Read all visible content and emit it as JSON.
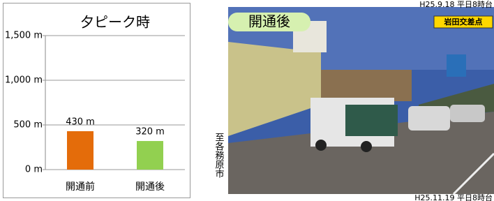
{
  "chart_data": {
    "type": "bar",
    "title": "夕ピーク時",
    "categories": [
      "開通前",
      "開通後"
    ],
    "values": [
      430,
      320
    ],
    "value_labels": [
      "430 m",
      "320 m"
    ],
    "colors": [
      "#e46c0a",
      "#92d050"
    ],
    "ylim": [
      0,
      1500
    ],
    "yticks": [
      {
        "value": 0,
        "label": "0 m"
      },
      {
        "value": 500,
        "label": "500 m"
      },
      {
        "value": 1000,
        "label": "1,000 m"
      },
      {
        "value": 1500,
        "label": "1,500 m"
      }
    ],
    "grid": true
  },
  "photo": {
    "label": "開通後",
    "date_top": "H25.9.18 平日8時台",
    "place": "岩田交差点",
    "direction": "至各務原市",
    "date_bottom": "H25.11.19 平日8時台"
  }
}
